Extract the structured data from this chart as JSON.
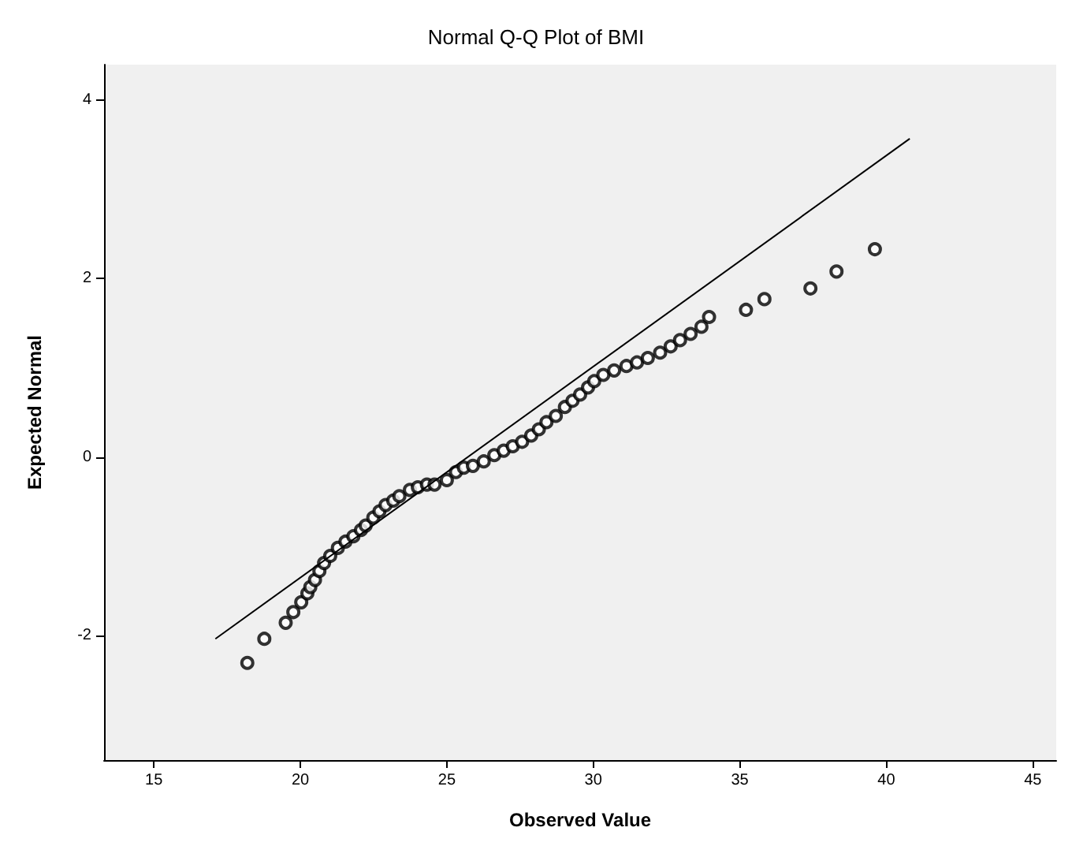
{
  "chart_data": {
    "type": "scatter",
    "title": "Normal Q-Q Plot of BMI",
    "xlabel": "Observed Value",
    "ylabel": "Expected Normal",
    "xlim": [
      13.3,
      45.8
    ],
    "xticks": [
      15,
      20,
      25,
      30,
      35,
      40,
      45
    ],
    "ylim": [
      -3.4,
      4.4
    ],
    "yticks": [
      -2,
      0,
      2,
      4
    ],
    "grid": false,
    "marker": "circle",
    "series": [
      {
        "color": "#000000",
        "x": [
          18.19,
          18.77,
          19.5,
          19.76,
          20.03,
          20.24,
          20.34,
          20.5,
          20.65,
          20.81,
          21.02,
          21.28,
          21.54,
          21.81,
          22.07,
          22.23,
          22.49,
          22.7,
          22.91,
          23.17,
          23.38,
          23.74,
          24.01,
          24.32,
          24.58,
          25.0,
          25.31,
          25.58,
          25.89,
          26.26,
          26.62,
          26.94,
          27.25,
          27.57,
          27.88,
          28.14,
          28.4,
          28.72,
          29.03,
          29.29,
          29.55,
          29.82,
          30.03,
          30.34,
          30.71,
          31.13,
          31.49,
          31.86,
          32.28,
          32.64,
          32.96,
          33.32,
          33.69,
          33.95,
          35.21,
          35.84,
          37.41,
          38.3,
          39.61
        ],
        "values": [
          -2.31,
          -2.04,
          -1.86,
          -1.74,
          -1.63,
          -1.53,
          -1.46,
          -1.38,
          -1.28,
          -1.19,
          -1.11,
          -1.02,
          -0.95,
          -0.89,
          -0.82,
          -0.77,
          -0.68,
          -0.61,
          -0.54,
          -0.49,
          -0.44,
          -0.37,
          -0.34,
          -0.31,
          -0.31,
          -0.26,
          -0.17,
          -0.12,
          -0.1,
          -0.05,
          0.02,
          0.07,
          0.12,
          0.17,
          0.24,
          0.31,
          0.39,
          0.46,
          0.56,
          0.63,
          0.7,
          0.78,
          0.85,
          0.92,
          0.97,
          1.02,
          1.06,
          1.11,
          1.17,
          1.24,
          1.31,
          1.38,
          1.46,
          1.57,
          1.65,
          1.77,
          1.89,
          2.08,
          2.33
        ]
      },
      {
        "type": "line",
        "color": "#000000",
        "x": [
          17.1,
          40.8
        ],
        "values": [
          -2.04,
          3.57
        ],
        "marker": "none"
      }
    ]
  }
}
